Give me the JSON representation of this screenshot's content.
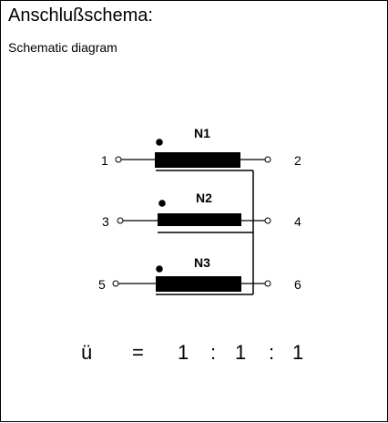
{
  "header": {
    "title": "Anschlußschema:",
    "subtitle": "Schematic diagram"
  },
  "windings": [
    {
      "label": "N1",
      "pin_left": "1",
      "pin_right": "2"
    },
    {
      "label": "N2",
      "pin_left": "3",
      "pin_right": "4"
    },
    {
      "label": "N3",
      "pin_left": "5",
      "pin_right": "6"
    }
  ],
  "ratio": {
    "symbol": "ü",
    "equals": "=",
    "values": [
      "1",
      "1",
      "1"
    ],
    "separator": ":"
  }
}
